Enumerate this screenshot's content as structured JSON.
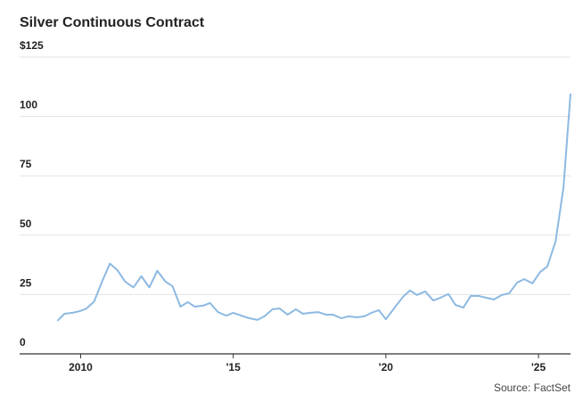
{
  "chart_data": {
    "type": "line",
    "title": "Silver Continuous Contract",
    "source": "Source: FactSet",
    "x": [
      2009.24,
      2009.47,
      2009.74,
      2009.97,
      2010.18,
      2010.44,
      2010.7,
      2010.96,
      2011.2,
      2011.46,
      2011.73,
      2011.99,
      2012.25,
      2012.51,
      2012.78,
      2013.01,
      2013.27,
      2013.51,
      2013.74,
      2014.01,
      2014.24,
      2014.5,
      2014.77,
      2015.0,
      2015.26,
      2015.53,
      2015.79,
      2016.02,
      2016.29,
      2016.52,
      2016.78,
      2017.05,
      2017.28,
      2017.54,
      2017.78,
      2018.04,
      2018.27,
      2018.54,
      2018.77,
      2019.04,
      2019.3,
      2019.53,
      2019.77,
      2020.0,
      2020.29,
      2020.56,
      2020.79,
      2021.02,
      2021.29,
      2021.55,
      2021.78,
      2022.05,
      2022.28,
      2022.54,
      2022.78,
      2023.04,
      2023.3,
      2023.54,
      2023.8,
      2024.04,
      2024.3,
      2024.53,
      2024.8,
      2025.06,
      2025.29,
      2025.56,
      2025.82,
      2026.05
    ],
    "series": [
      {
        "color": "#8db9e2",
        "values": [
          13.9,
          16.9,
          17.3,
          18,
          19,
          22,
          30.4,
          38,
          35.3,
          30.4,
          28,
          32.7,
          28,
          35,
          30.4,
          28.5,
          19.9,
          21.8,
          19.9,
          20.3,
          21.4,
          17.6,
          16.1,
          17.3,
          16.1,
          15,
          14.3,
          15.8,
          18.8,
          19.1,
          16.5,
          18.8,
          16.9,
          17.3,
          17.6,
          16.5,
          16.5,
          15,
          15.8,
          15.4,
          15.8,
          17.3,
          18.4,
          14.6,
          19.5,
          24,
          26.7,
          24.8,
          26.3,
          22.5,
          23.6,
          25.2,
          20.6,
          19.5,
          24.4,
          24.4,
          23.6,
          22.9,
          24.8,
          25.5,
          30,
          31.5,
          29.7,
          34.5,
          36.8,
          47.3,
          70.2,
          109.6
        ]
      }
    ],
    "xlim": [
      2008,
      2026.05
    ],
    "xticks": [
      2010,
      {
        "value": 2015,
        "label": "'15"
      },
      {
        "value": 2020,
        "label": "'20"
      },
      {
        "value": 2025,
        "label": "'25"
      }
    ],
    "ylim": [
      0,
      125
    ],
    "yticks": [
      0,
      25,
      50,
      75,
      100,
      {
        "value": 125,
        "label": "$125"
      }
    ],
    "grid": true
  }
}
